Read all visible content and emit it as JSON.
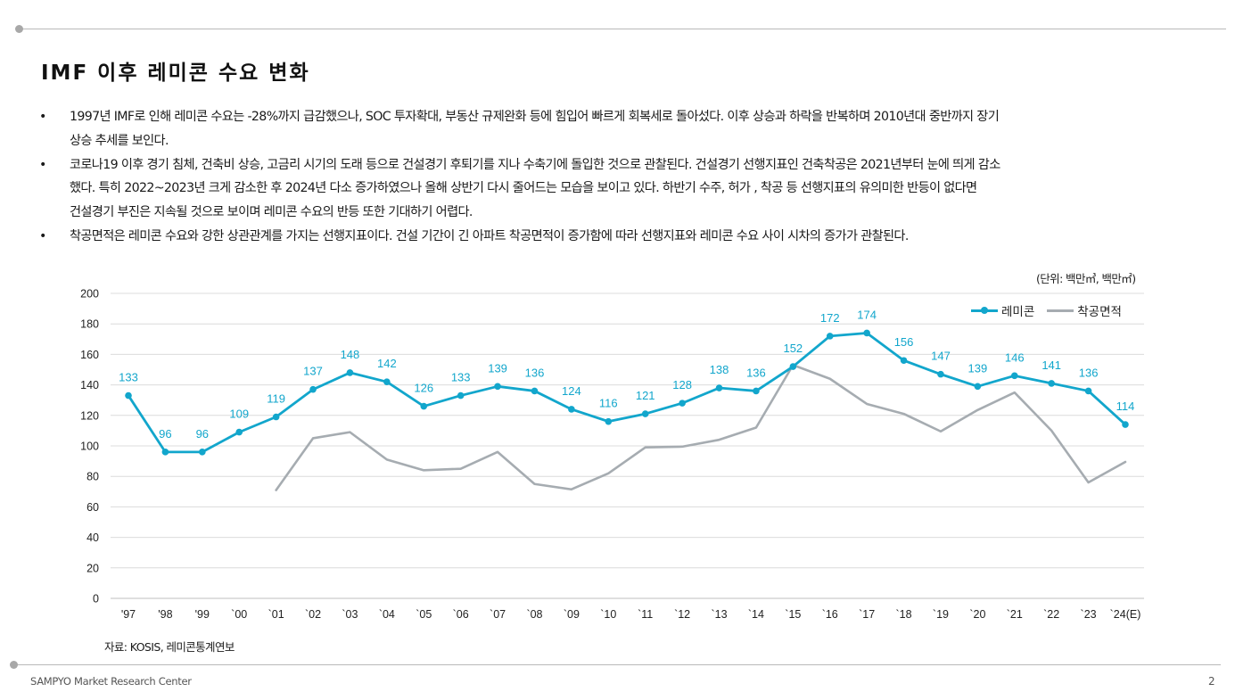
{
  "page": {
    "title": "IMF 이후 레미콘 수요 변화",
    "bullets": [
      {
        "marker": "•",
        "lines": [
          "1997년 IMF로 인해 레미콘 수요는 -28%까지 급감했으나, SOC 투자확대, 부동산 규제완화 등에 힘입어 빠르게 회복세로 돌아섰다. 이후 상승과 하락을 반복하며 2010년대 중반까지 장기",
          "상승 추세를 보인다."
        ]
      },
      {
        "marker": "•",
        "lines": [
          "코로나19 이후 경기 침체, 건축비 상승, 고금리 시기의 도래 등으로 건설경기 후퇴기를 지나 수축기에 돌입한 것으로 관찰된다. 건설경기 선행지표인 건축착공은 2021년부터 눈에 띄게 감소",
          "했다.  특히 2022~2023년 크게 감소한 후 2024년 다소 증가하였으나 올해 상반기 다시 줄어드는 모습을 보이고 있다. 하반기 수주, 허가 , 착공 등 선행지표의 유의미한 반등이 없다면",
          "건설경기 부진은 지속될 것으로 보이며 레미콘 수요의 반등 또한 기대하기 어렵다."
        ]
      },
      {
        "marker": "•",
        "lines": [
          "착공면적은 레미콘 수요와 강한 상관관계를 가지는 선행지표이다. 건설 기간이 긴 아파트 착공면적이 증가함에 따라 선행지표와 레미콘 수요 사이 시차의  증가가 관찰된다."
        ]
      }
    ],
    "unit_note": "(단위: 백만㎥, 백만㎡)",
    "source": "자료: KOSIS, 레미콘통계연보",
    "footer": "SAMPYO Market Research Center",
    "page_number": "2"
  },
  "chart_data": {
    "type": "line",
    "categories": [
      "'97",
      "'98",
      "'99",
      "`00",
      "`01",
      "`02",
      "`03",
      "`04",
      "`05",
      "`06",
      "`07",
      "`08",
      "`09",
      "`10",
      "`11",
      "`12",
      "`13",
      "`14",
      "`15",
      "`16",
      "`17",
      "`18",
      "`19",
      "`20",
      "`21",
      "`22",
      "`23",
      "`24(E)"
    ],
    "ylim": [
      0,
      200
    ],
    "y_ticks": [
      0,
      20,
      40,
      60,
      80,
      100,
      120,
      140,
      160,
      180,
      200
    ],
    "grid": true,
    "legend_position": "top-right",
    "series": [
      {
        "name": "레미콘",
        "color": "#12a6cc",
        "markers": true,
        "data_labels": true,
        "values": [
          133,
          96,
          96,
          109,
          119,
          137,
          148,
          142,
          126,
          133,
          139,
          136,
          124,
          116,
          121,
          128,
          138,
          136,
          152,
          172,
          174,
          156,
          147,
          139,
          146,
          141,
          136,
          114
        ]
      },
      {
        "name": "착공면적",
        "color": "#a6acb1",
        "markers": false,
        "data_labels": false,
        "values": [
          null,
          null,
          null,
          null,
          71,
          105,
          109,
          91,
          84,
          85,
          96,
          75,
          71.5,
          82,
          99,
          99.5,
          104,
          112,
          153,
          144,
          127.5,
          121,
          109.5,
          123.5,
          135,
          110,
          76,
          89.5
        ]
      }
    ]
  }
}
